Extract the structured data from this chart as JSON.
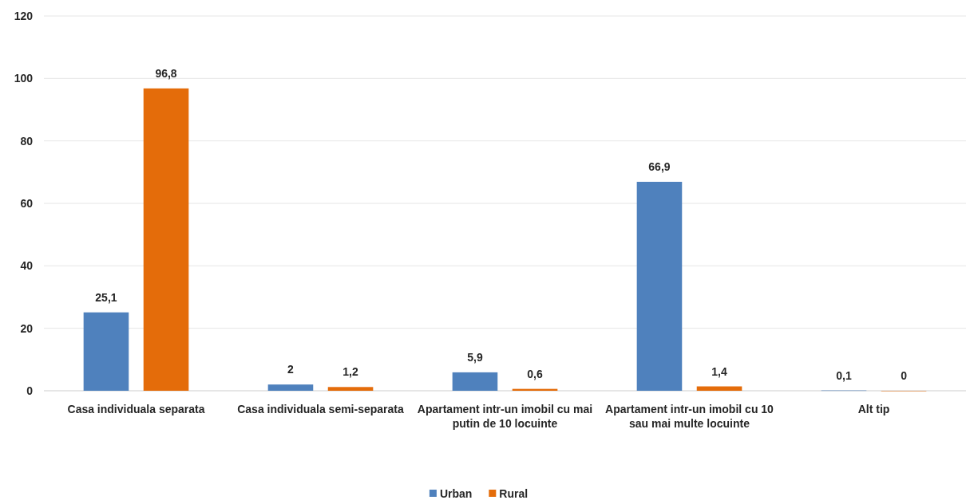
{
  "chart_data": {
    "type": "bar",
    "categories": [
      "Casa individuala separata",
      "Casa individuala semi-separata",
      "Apartament intr-un imobil cu mai putin de 10 locuinte",
      "Apartament intr-un imobil cu 10 sau mai multe locuinte",
      "Alt tip"
    ],
    "series": [
      {
        "name": "Urban",
        "color": "#4f81bd",
        "values": [
          25.1,
          2,
          5.9,
          66.9,
          0.1
        ],
        "value_labels": [
          "25,1",
          "2",
          "5,9",
          "66,9",
          "0,1"
        ]
      },
      {
        "name": "Rural",
        "color": "#e46c0a",
        "values": [
          96.8,
          1.2,
          0.6,
          1.4,
          0
        ],
        "value_labels": [
          "96,8",
          "1,2",
          "0,6",
          "1,4",
          "0"
        ]
      }
    ],
    "ylim": [
      0,
      120
    ],
    "yticks": [
      0,
      20,
      40,
      60,
      80,
      100,
      120
    ],
    "grid": "y",
    "legend": "bottom"
  }
}
